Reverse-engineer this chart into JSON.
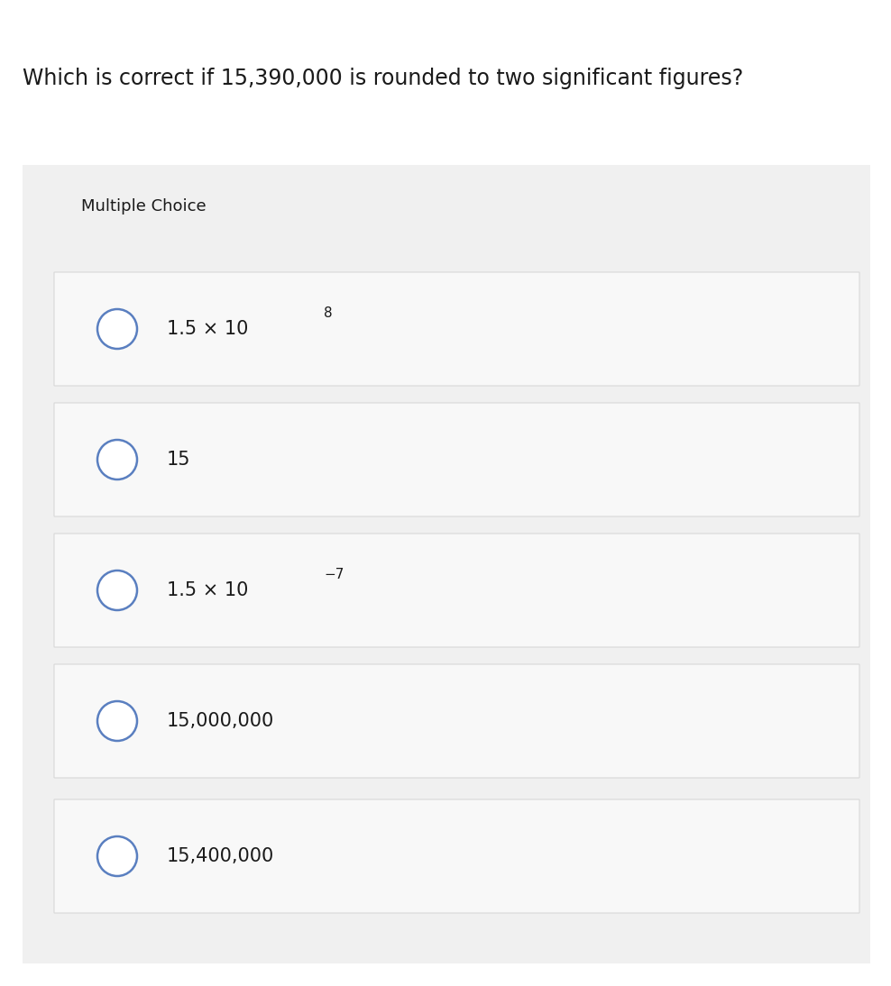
{
  "title": "Which is correct if 15,390,000 is rounded to two significant figures?",
  "title_fontsize": 17,
  "title_color": "#1a1a1a",
  "section_label": "Multiple Choice",
  "section_label_fontsize": 13,
  "section_label_color": "#1a1a1a",
  "outer_bg_color": "#f0f0f0",
  "option_bg_color": "#f8f8f8",
  "option_border_color": "#d8d8d8",
  "circle_edge_color": "#5a7fc0",
  "circle_face_color": "#ffffff",
  "fig_bg_color": "#ffffff",
  "options": [
    {
      "text": "1.5 × 10",
      "superscript": "8"
    },
    {
      "text": "15",
      "superscript": ""
    },
    {
      "text": "1.5 × 10",
      "superscript": "−7"
    },
    {
      "text": "15,000,000",
      "superscript": ""
    },
    {
      "text": "15,400,000",
      "superscript": ""
    }
  ]
}
